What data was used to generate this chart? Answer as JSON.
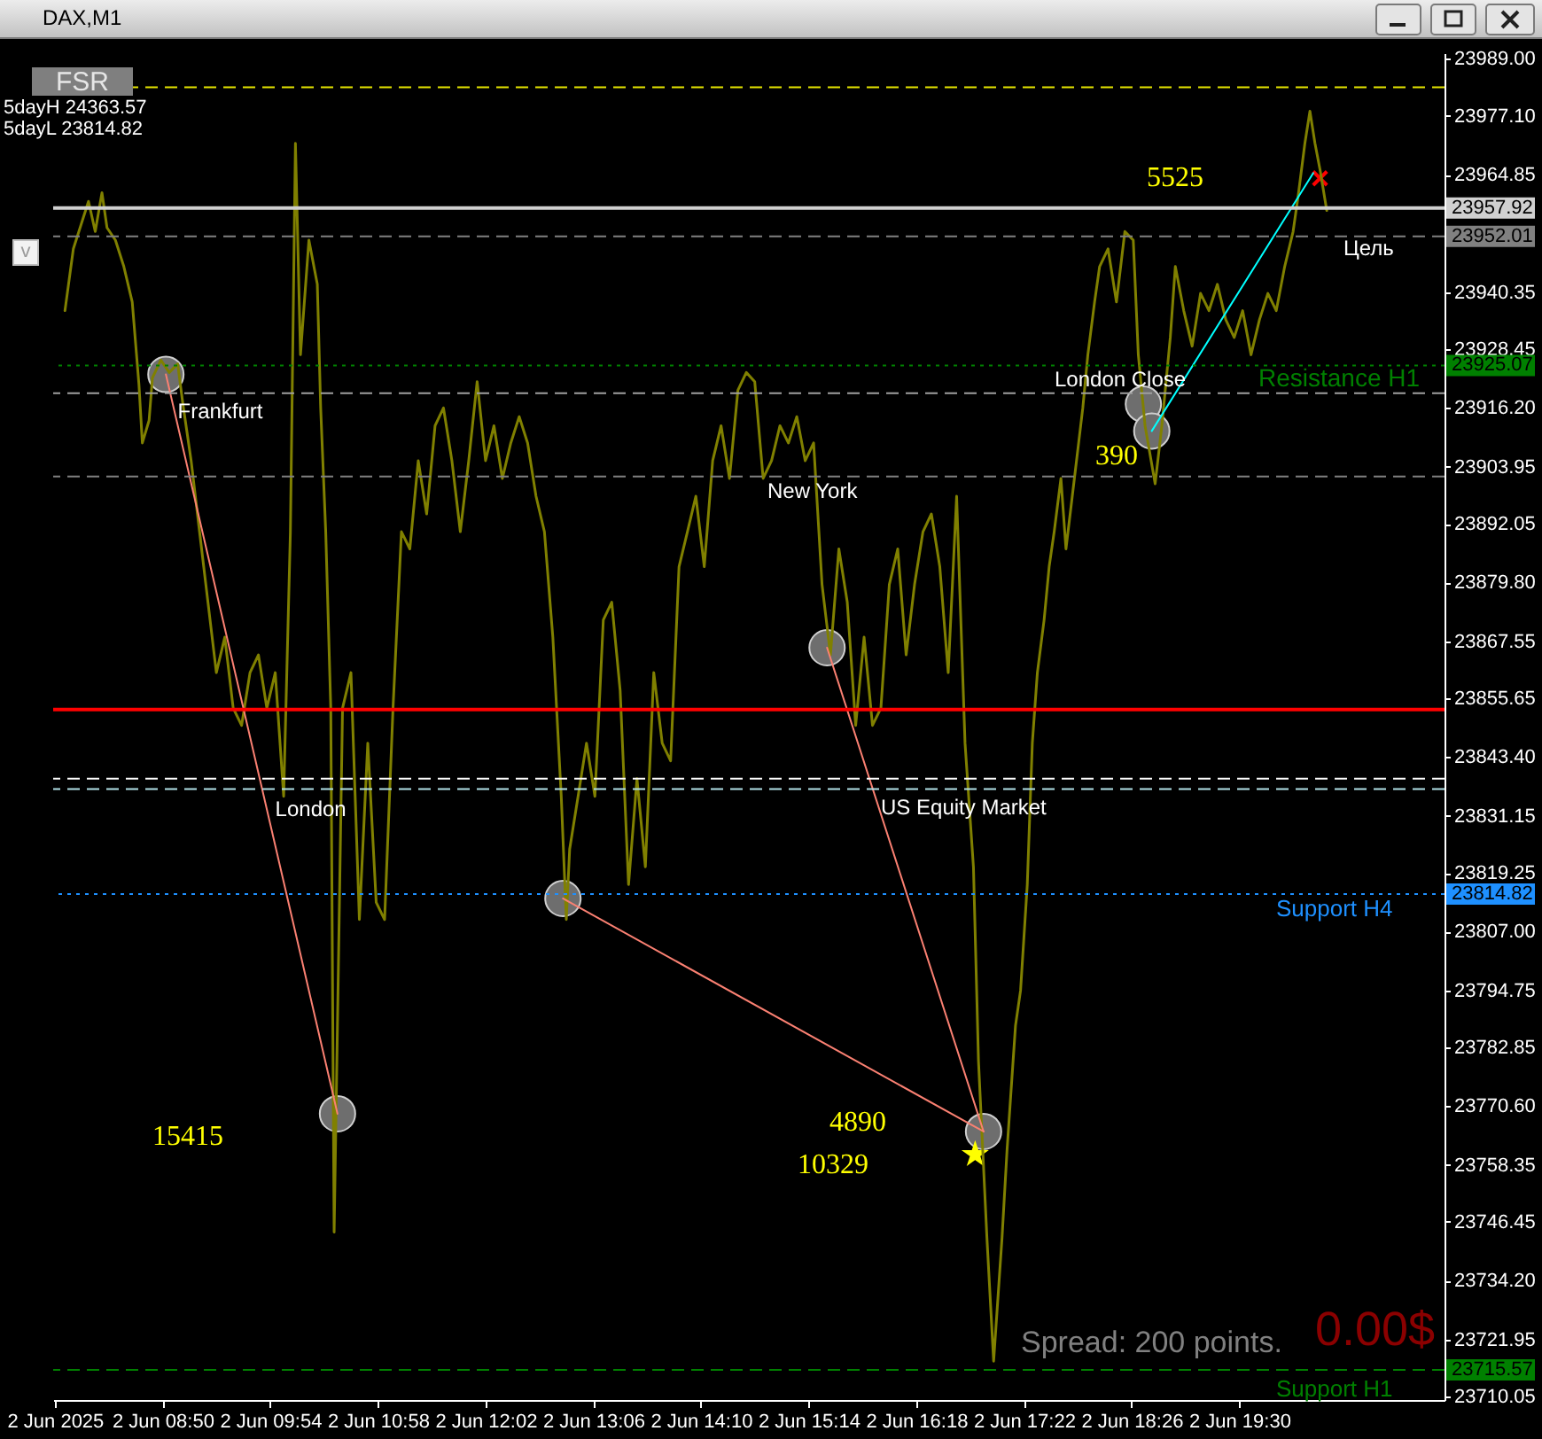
{
  "chart_data": {
    "type": "line",
    "title": "DAX,M1",
    "xlim": [
      "2025-06-02T07:45",
      "2025-06-02T21:32"
    ],
    "ylim": [
      23709.3,
      23990.2
    ],
    "xticks": [
      {
        "value": "2025-06-02T07:46",
        "label": "2 Jun 2025"
      },
      {
        "value": "2025-06-02T08:50",
        "label": "2 Jun 08:50"
      },
      {
        "value": "2025-06-02T09:54",
        "label": "2 Jun 09:54"
      },
      {
        "value": "2025-06-02T10:58",
        "label": "2 Jun 10:58"
      },
      {
        "value": "2025-06-02T12:02",
        "label": "2 Jun 12:02"
      },
      {
        "value": "2025-06-02T13:06",
        "label": "2 Jun 13:06"
      },
      {
        "value": "2025-06-02T14:10",
        "label": "2 Jun 14:10"
      },
      {
        "value": "2025-06-02T15:14",
        "label": "2 Jun 15:14"
      },
      {
        "value": "2025-06-02T16:18",
        "label": "2 Jun 16:18"
      },
      {
        "value": "2025-06-02T17:22",
        "label": "2 Jun 17:22"
      },
      {
        "value": "2025-06-02T18:26",
        "label": "2 Jun 18:26"
      },
      {
        "value": "2025-06-02T19:30",
        "label": "2 Jun 19:30"
      }
    ],
    "yticks": [
      {
        "value": 23989,
        "label": "23989.00"
      },
      {
        "value": 23977.1,
        "label": "23977.10"
      },
      23964.85,
      23940.35,
      23928.45,
      {
        "value": 23916.2,
        "label": "23916.20"
      },
      23903.95,
      23892.05,
      {
        "value": 23879.8,
        "label": "23879.80"
      },
      23867.55,
      23855.65,
      {
        "value": 23843.4,
        "label": "23843.40"
      },
      23831.15,
      23819.25,
      {
        "value": 23807,
        "label": "23807.00"
      },
      23794.75,
      23782.85,
      {
        "value": 23770.6,
        "label": "23770.60"
      },
      23758.35,
      23746.45,
      {
        "value": 23734.2,
        "label": "23734.20"
      },
      23721.95,
      23710.05
    ],
    "series": [
      {
        "color": "#808000",
        "x": [
          "2025-06-02T07:52",
          "2025-06-02T07:57",
          "2025-06-02T08:02",
          "2025-06-02T08:06",
          "2025-06-02T08:10",
          "2025-06-02T08:14",
          "2025-06-02T08:17",
          "2025-06-02T08:22",
          "2025-06-02T08:27",
          "2025-06-02T08:32",
          "2025-06-02T08:36",
          "2025-06-02T08:38",
          "2025-06-02T08:42",
          "2025-06-02T08:44",
          "2025-06-02T08:49",
          "2025-06-02T08:54",
          "2025-06-02T08:59",
          "2025-06-02T09:02",
          "2025-06-02T09:07",
          "2025-06-02T09:12",
          "2025-06-02T09:17",
          "2025-06-02T09:22",
          "2025-06-02T09:27",
          "2025-06-02T09:32",
          "2025-06-02T09:37",
          "2025-06-02T09:42",
          "2025-06-02T09:47",
          "2025-06-02T09:52",
          "2025-06-02T09:57",
          "2025-06-02T10:02",
          "2025-06-02T10:06",
          "2025-06-02T10:09",
          "2025-06-02T10:12",
          "2025-06-02T10:17",
          "2025-06-02T10:22",
          "2025-06-02T10:24",
          "2025-06-02T10:27",
          "2025-06-02T10:30",
          "2025-06-02T10:32",
          "2025-06-02T10:37",
          "2025-06-02T10:42",
          "2025-06-02T10:47",
          "2025-06-02T10:52",
          "2025-06-02T10:57",
          "2025-06-02T11:02",
          "2025-06-02T11:07",
          "2025-06-02T11:12",
          "2025-06-02T11:17",
          "2025-06-02T11:22",
          "2025-06-02T11:27",
          "2025-06-02T11:32",
          "2025-06-02T11:37",
          "2025-06-02T11:42",
          "2025-06-02T11:47",
          "2025-06-02T11:52",
          "2025-06-02T11:57",
          "2025-06-02T12:02",
          "2025-06-02T12:07",
          "2025-06-02T12:12",
          "2025-06-02T12:17",
          "2025-06-02T12:22",
          "2025-06-02T12:27",
          "2025-06-02T12:32",
          "2025-06-02T12:37",
          "2025-06-02T12:42",
          "2025-06-02T12:47",
          "2025-06-02T12:50",
          "2025-06-02T12:52",
          "2025-06-02T12:57",
          "2025-06-02T13:02",
          "2025-06-02T13:07",
          "2025-06-02T13:12",
          "2025-06-02T13:17",
          "2025-06-02T13:22",
          "2025-06-02T13:27",
          "2025-06-02T13:32",
          "2025-06-02T13:37",
          "2025-06-02T13:42",
          "2025-06-02T13:47",
          "2025-06-02T13:52",
          "2025-06-02T13:57",
          "2025-06-02T14:02",
          "2025-06-02T14:07",
          "2025-06-02T14:12",
          "2025-06-02T14:17",
          "2025-06-02T14:22",
          "2025-06-02T14:27",
          "2025-06-02T14:32",
          "2025-06-02T14:37",
          "2025-06-02T14:42",
          "2025-06-02T14:47",
          "2025-06-02T14:52",
          "2025-06-02T14:57",
          "2025-06-02T15:02",
          "2025-06-02T15:07",
          "2025-06-02T15:12",
          "2025-06-02T15:17",
          "2025-06-02T15:22",
          "2025-06-02T15:27",
          "2025-06-02T15:32",
          "2025-06-02T15:37",
          "2025-06-02T15:42",
          "2025-06-02T15:47",
          "2025-06-02T15:52",
          "2025-06-02T15:57",
          "2025-06-02T16:02",
          "2025-06-02T16:07",
          "2025-06-02T16:12",
          "2025-06-02T16:17",
          "2025-06-02T16:22",
          "2025-06-02T16:27",
          "2025-06-02T16:32",
          "2025-06-02T16:37",
          "2025-06-02T16:42",
          "2025-06-02T16:47",
          "2025-06-02T16:52",
          "2025-06-02T16:55",
          "2025-06-02T16:57",
          "2025-06-02T17:00",
          "2025-06-02T17:04",
          "2025-06-02T17:09",
          "2025-06-02T17:12",
          "2025-06-02T17:17",
          "2025-06-02T17:20",
          "2025-06-02T17:24",
          "2025-06-02T17:27",
          "2025-06-02T17:30",
          "2025-06-02T17:34",
          "2025-06-02T17:37",
          "2025-06-02T17:40",
          "2025-06-02T17:44",
          "2025-06-02T17:47",
          "2025-06-02T17:52",
          "2025-06-02T17:57",
          "2025-06-02T18:00",
          "2025-06-02T18:04",
          "2025-06-02T18:07",
          "2025-06-02T18:12",
          "2025-06-02T18:17",
          "2025-06-02T18:22",
          "2025-06-02T18:27",
          "2025-06-02T18:30",
          "2025-06-02T18:34",
          "2025-06-02T18:40",
          "2025-06-02T18:44",
          "2025-06-02T18:49",
          "2025-06-02T18:52",
          "2025-06-02T18:57",
          "2025-06-02T19:02",
          "2025-06-02T19:07",
          "2025-06-02T19:12",
          "2025-06-02T19:17",
          "2025-06-02T19:22",
          "2025-06-02T19:27",
          "2025-06-02T19:32",
          "2025-06-02T19:37",
          "2025-06-02T19:42",
          "2025-06-02T19:47",
          "2025-06-02T19:52",
          "2025-06-02T19:57",
          "2025-06-02T20:02",
          "2025-06-02T20:05",
          "2025-06-02T20:09",
          "2025-06-02T20:12",
          "2025-06-02T20:15",
          "2025-06-02T20:18",
          "2025-06-02T20:22"
        ],
        "values": [
          23936.5,
          23949.4,
          23954.9,
          23959.3,
          23953.0,
          23961.1,
          23953.8,
          23951.2,
          23945.7,
          23938.3,
          23921.0,
          23908.9,
          23913.6,
          23922.5,
          23926.2,
          23923.6,
          23925.4,
          23917.3,
          23905.2,
          23890.4,
          23875.7,
          23861.0,
          23868.4,
          23853.6,
          23850.0,
          23861.0,
          23864.7,
          23853.6,
          23861.0,
          23835.2,
          23890.4,
          23971.4,
          23927.3,
          23951.2,
          23942.0,
          23916.2,
          23890.4,
          23853.6,
          23744.3,
          23853.6,
          23861.0,
          23809.5,
          23846.3,
          23813.1,
          23809.5,
          23853.6,
          23890.4,
          23886.8,
          23905.2,
          23894.1,
          23912.5,
          23916.2,
          23905.2,
          23890.4,
          23905.2,
          23921.7,
          23905.2,
          23912.5,
          23901.5,
          23908.9,
          23914.4,
          23908.9,
          23897.8,
          23890.4,
          23868.4,
          23835.2,
          23809.5,
          23824.2,
          23835.2,
          23846.3,
          23835.2,
          23872.0,
          23875.7,
          23857.3,
          23816.8,
          23838.9,
          23820.5,
          23861.0,
          23846.3,
          23842.6,
          23883.1,
          23890.4,
          23897.8,
          23883.1,
          23905.2,
          23912.5,
          23901.5,
          23919.9,
          23923.6,
          23921.7,
          23901.5,
          23905.2,
          23912.5,
          23908.9,
          23914.4,
          23905.2,
          23908.9,
          23879.4,
          23864.7,
          23886.8,
          23875.7,
          23850.0,
          23868.4,
          23850.0,
          23853.6,
          23879.4,
          23886.8,
          23864.7,
          23879.4,
          23890.4,
          23894.1,
          23883.1,
          23861.0,
          23897.8,
          23846.3,
          23820.5,
          23780.0,
          23765.3,
          23743.2,
          23717.4,
          23743.2,
          23761.6,
          23787.4,
          23794.7,
          23816.8,
          23846.3,
          23861.0,
          23872.0,
          23883.1,
          23890.4,
          23901.5,
          23886.8,
          23901.5,
          23916.2,
          23927.3,
          23938.3,
          23945.7,
          23949.4,
          23938.3,
          23953.0,
          23951.2,
          23927.3,
          23912.5,
          23900.4,
          23912.5,
          23930.9,
          23945.7,
          23936.5,
          23929.1,
          23940.1,
          23936.5,
          23942.0,
          23934.6,
          23930.9,
          23936.5,
          23927.3,
          23934.6,
          23940.1,
          23936.5,
          23945.7,
          23953.0,
          23960.4,
          23971.4,
          23978.1,
          23971.4,
          23965.9,
          23957.4
        ]
      },
      {
        "color": "#fa8072",
        "x": [
          "2025-06-02T08:52",
          "2025-06-02T10:34"
        ],
        "values": [
          23923.2,
          23769.0
        ]
      },
      {
        "color": "#fa8072",
        "x": [
          "2025-06-02T12:48",
          "2025-06-02T16:58"
        ],
        "values": [
          23813.9,
          23765.3
        ]
      },
      {
        "color": "#fa8072",
        "x": [
          "2025-06-02T15:25",
          "2025-06-02T16:58"
        ],
        "values": [
          23866.2,
          23765.3
        ]
      },
      {
        "color": "#00ffff",
        "x": [
          "2025-06-02T18:38",
          "2025-06-02T20:14"
        ],
        "values": [
          23911.4,
          23965.2
        ]
      },
      {
        "type": "scatter",
        "marker": "circle",
        "color": "#6e6e6e",
        "x": [
          "2025-06-02T08:52",
          "2025-06-02T10:34",
          "2025-06-02T12:48",
          "2025-06-02T15:25",
          "2025-06-02T16:58",
          "2025-06-02T18:33",
          "2025-06-02T18:38"
        ],
        "values": [
          23923.2,
          23769.0,
          23813.9,
          23866.2,
          23765.3,
          23917.0,
          23911.4
        ]
      },
      {
        "type": "scatter",
        "marker": "star",
        "color": "#ffff00",
        "x": [
          "2025-06-02T16:53"
        ],
        "values": [
          23760.5
        ]
      },
      {
        "type": "scatter",
        "marker": "cross",
        "color": "#ff0000",
        "x": [
          "2025-06-02T20:18"
        ],
        "values": [
          23964.1
        ]
      }
    ],
    "ref_lines": [
      {
        "axis": "y",
        "value": 23983.1,
        "color": "#e6e600",
        "line_style": "dashed"
      },
      {
        "axis": "y",
        "value": 23957.92,
        "label": "23957.92",
        "color": "#d0d0d0",
        "line_style": "solid"
      },
      {
        "axis": "y",
        "value": 23952.01,
        "label": "23952.01",
        "color": "#808080",
        "line_style": "dashed"
      },
      {
        "axis": "y",
        "value": 23925.07,
        "label": "23925.07",
        "color": "#008000",
        "line_style": "dotted"
      },
      {
        "axis": "y",
        "value": 23919.3,
        "color": "#a0a0a0",
        "line_style": "dashed"
      },
      {
        "axis": "y",
        "value": 23901.9,
        "color": "#808080",
        "line_style": "dashed"
      },
      {
        "axis": "y",
        "value": 23853.3,
        "color": "#ff0000",
        "line_style": "solid"
      },
      {
        "axis": "y",
        "value": 23838.9,
        "color": "#ffffff",
        "line_style": "dashed"
      },
      {
        "axis": "y",
        "value": 23836.7,
        "color": "#b0e0e6",
        "line_style": "dashed"
      },
      {
        "axis": "y",
        "value": 23814.82,
        "label": "23814.82",
        "color": "#1e90ff",
        "line_style": "dotted"
      },
      {
        "axis": "y",
        "value": 23715.57,
        "label": "23715.57",
        "color": "#008000",
        "line_style": "dashed"
      }
    ],
    "annotations": [
      {
        "text": "Frankfurt",
        "x": "2025-06-02T08:59",
        "y": 23915.5
      },
      {
        "text": "London",
        "x": "2025-06-02T09:57",
        "y": 23832.5
      },
      {
        "text": "US Equity Market",
        "x": "2025-06-02T15:57",
        "y": 23833.0
      },
      "London Close",
      "New York",
      "Resistance H1",
      "Support H4",
      "Support H1",
      "Цель",
      "5525",
      "390",
      "15415",
      "4890",
      "10329",
      "FSR",
      "v",
      "5dayH 24363.57",
      "5dayL 23814.82",
      "Spread: 200 points.",
      "0.00$"
    ]
  }
}
